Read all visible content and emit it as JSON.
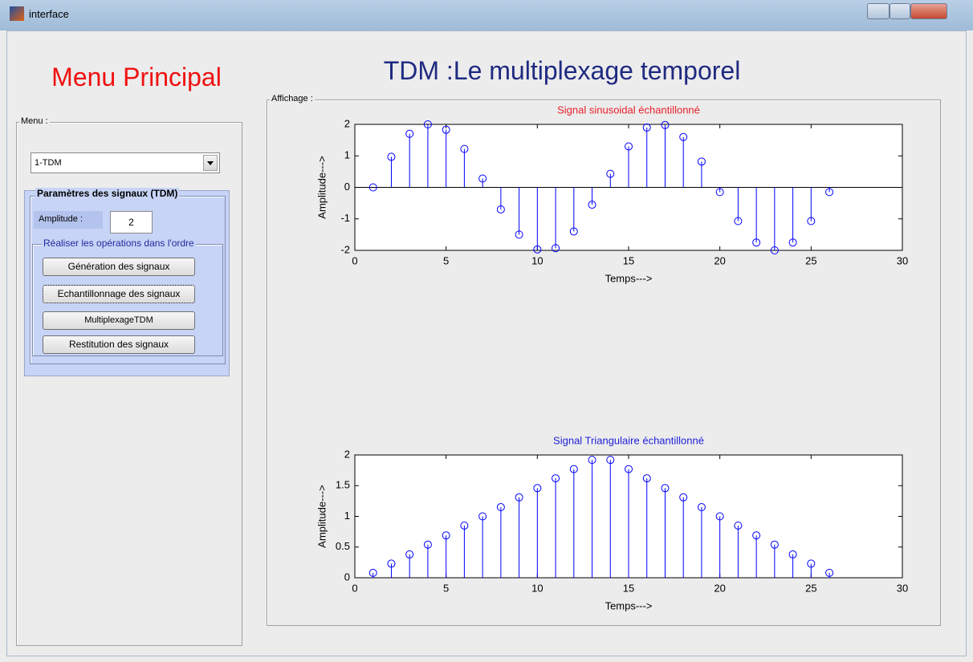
{
  "window": {
    "title": "interface"
  },
  "menu_heading": "Menu  Principal",
  "main_title": "TDM :Le multiplexage temporel",
  "menu_panel": {
    "label": "Menu :",
    "dropdown": "1-TDM",
    "params_panel": {
      "title": "Paramètres des signaux (TDM)",
      "amplitude_label": "Amplitude :",
      "amplitude_value": "2",
      "ops_panel": {
        "title": "Réaliser les opérations dans l'ordre",
        "buttons": [
          "Génération des signaux",
          "Echantillonnage des signaux",
          "MultiplexageTDM",
          "Restitution des signaux"
        ]
      }
    }
  },
  "display_panel": {
    "label": "Affichage :"
  },
  "chart_data": [
    {
      "type": "stem",
      "title": "Signal sinusoidal échantillonné",
      "title_color": "#e8202a",
      "xlabel": "Temps--->",
      "ylabel": "Amplitude--->",
      "x": [
        1,
        2,
        3,
        4,
        5,
        6,
        7,
        8,
        9,
        10,
        11,
        12,
        13,
        14,
        15,
        16,
        17,
        18,
        19,
        20,
        21,
        22,
        23,
        24,
        25,
        26
      ],
      "values": [
        0,
        0.97,
        1.7,
        2,
        1.83,
        1.22,
        0.28,
        -0.7,
        -1.5,
        -1.97,
        -1.93,
        -1.4,
        -0.55,
        0.43,
        1.3,
        1.9,
        1.98,
        1.6,
        0.82,
        -0.15,
        -1.07,
        -1.75,
        -2,
        -1.75,
        -1.07,
        -0.15
      ],
      "color": "#0000ff",
      "xlim": [
        0,
        30
      ],
      "ylim": [
        -2,
        2
      ],
      "xticks": [
        0,
        5,
        10,
        15,
        20,
        25,
        30
      ],
      "yticks": [
        -2,
        -1,
        0,
        1,
        2
      ]
    },
    {
      "type": "stem",
      "title": "Signal Triangulaire échantillonné",
      "title_color": "#2020d8",
      "xlabel": "Temps--->",
      "ylabel": "Amplitude--->",
      "x": [
        1,
        2,
        3,
        4,
        5,
        6,
        7,
        8,
        9,
        10,
        11,
        12,
        13,
        14,
        15,
        16,
        17,
        18,
        19,
        20,
        21,
        22,
        23,
        24,
        25,
        26
      ],
      "values": [
        0.08,
        0.23,
        0.38,
        0.54,
        0.69,
        0.85,
        1,
        1.15,
        1.31,
        1.46,
        1.62,
        1.77,
        1.92,
        1.92,
        1.77,
        1.62,
        1.46,
        1.31,
        1.15,
        1,
        0.85,
        0.69,
        0.54,
        0.38,
        0.23,
        0.08
      ],
      "color": "#0000ff",
      "xlim": [
        0,
        30
      ],
      "ylim": [
        0,
        2
      ],
      "xticks": [
        0,
        5,
        10,
        15,
        20,
        25,
        30
      ],
      "yticks": [
        0,
        0.5,
        1,
        1.5,
        2
      ]
    }
  ]
}
